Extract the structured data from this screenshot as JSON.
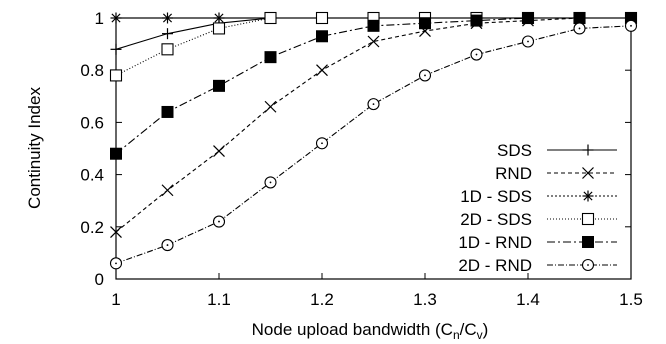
{
  "chart_data": {
    "type": "line",
    "xlabel": "Node upload bandwidth (C",
    "xlabel_sub1": "n",
    "xlabel_mid": "/C",
    "xlabel_sub2": "v",
    "xlabel_end": ")",
    "ylabel": "Continuity Index",
    "xlim": [
      1,
      1.5
    ],
    "ylim": [
      0,
      1
    ],
    "x_ticks": [
      "1",
      "1.1",
      "1.2",
      "1.3",
      "1.4",
      "1.5"
    ],
    "y_ticks": [
      "0",
      "0.2",
      "0.4",
      "0.6",
      "0.8",
      "1"
    ],
    "grid": false,
    "legend_position": "lower-right",
    "series": [
      {
        "name": "SDS",
        "marker": "plus",
        "dash": "",
        "x": [
          1.0,
          1.05,
          1.1,
          1.15,
          1.2,
          1.25,
          1.3,
          1.35,
          1.4,
          1.45,
          1.5
        ],
        "y": [
          0.88,
          0.94,
          0.98,
          1.0,
          1.0,
          1.0,
          1.0,
          1.0,
          1.0,
          1.0,
          1.0
        ]
      },
      {
        "name": "RND",
        "marker": "x",
        "dash": "4,3",
        "x": [
          1.0,
          1.05,
          1.1,
          1.15,
          1.2,
          1.25,
          1.3,
          1.35,
          1.4,
          1.45,
          1.5
        ],
        "y": [
          0.18,
          0.34,
          0.49,
          0.66,
          0.8,
          0.91,
          0.95,
          0.98,
          0.99,
          1.0,
          1.0
        ]
      },
      {
        "name": "1D - SDS",
        "marker": "star",
        "dash": "2,2",
        "x": [
          1.0,
          1.05,
          1.1,
          1.15,
          1.2,
          1.25,
          1.3,
          1.35,
          1.4,
          1.45,
          1.5
        ],
        "y": [
          1.0,
          1.0,
          1.0,
          1.0,
          1.0,
          1.0,
          1.0,
          1.0,
          1.0,
          1.0,
          1.0
        ]
      },
      {
        "name": "2D - SDS",
        "marker": "square-open",
        "dash": "1,2",
        "x": [
          1.0,
          1.05,
          1.1,
          1.15,
          1.2,
          1.25,
          1.3,
          1.35,
          1.4,
          1.45,
          1.5
        ],
        "y": [
          0.78,
          0.88,
          0.96,
          1.0,
          1.0,
          1.0,
          1.0,
          1.0,
          1.0,
          1.0,
          1.0
        ]
      },
      {
        "name": "1D - RND",
        "marker": "square-filled",
        "dash": "8,3,2,3",
        "x": [
          1.0,
          1.05,
          1.1,
          1.15,
          1.2,
          1.25,
          1.3,
          1.35,
          1.4,
          1.45,
          1.5
        ],
        "y": [
          0.48,
          0.64,
          0.74,
          0.85,
          0.93,
          0.97,
          0.98,
          0.99,
          1.0,
          1.0,
          1.0
        ]
      },
      {
        "name": "2D - RND",
        "marker": "circle-open",
        "dash": "6,2,1,2",
        "x": [
          1.0,
          1.05,
          1.1,
          1.15,
          1.2,
          1.25,
          1.3,
          1.35,
          1.4,
          1.45,
          1.5
        ],
        "y": [
          0.06,
          0.13,
          0.22,
          0.37,
          0.52,
          0.67,
          0.78,
          0.86,
          0.91,
          0.96,
          0.97
        ]
      }
    ]
  }
}
